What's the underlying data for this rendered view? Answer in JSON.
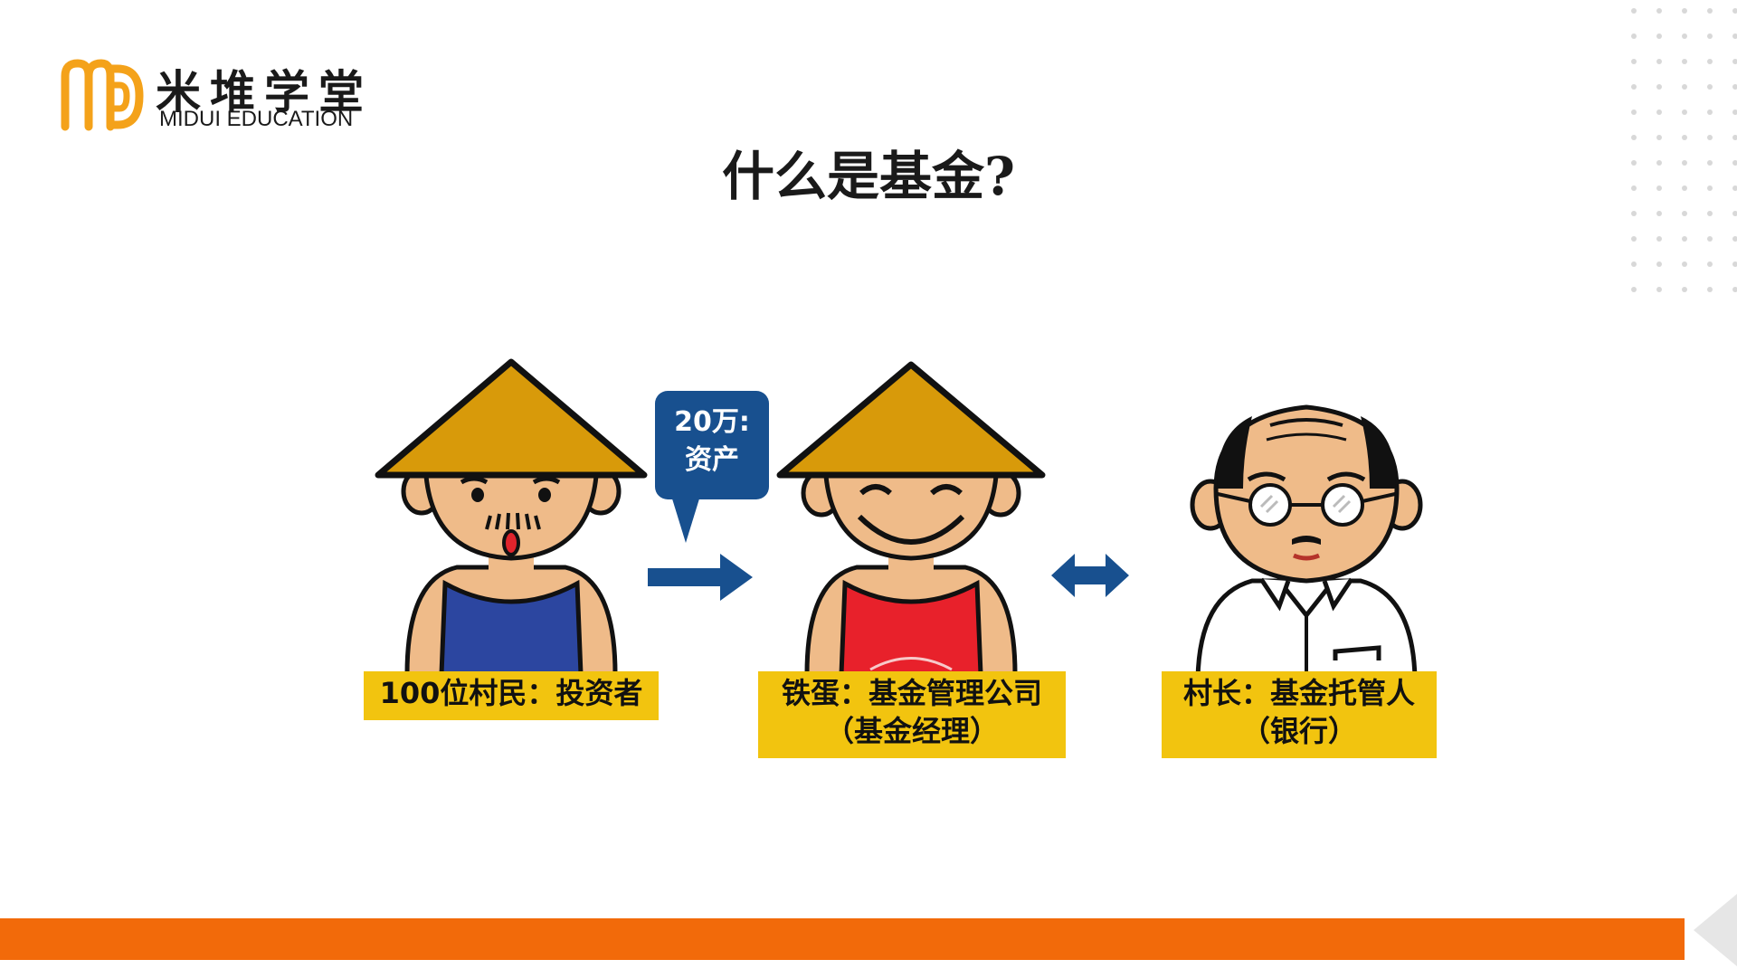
{
  "brand": {
    "name_cn": "米堆学堂",
    "name_en": "MIDUI EDUCATION",
    "accent_color": "#f4a21a"
  },
  "slide": {
    "title": "什么是基金?"
  },
  "bubble": {
    "line1": "20万:",
    "line2": "资产"
  },
  "figures": [
    {
      "id": "villagers",
      "label_line1": "100位村民：投资者",
      "label_line2": ""
    },
    {
      "id": "tiedan",
      "label_line1": "铁蛋：基金管理公司",
      "label_line2": "（基金经理）"
    },
    {
      "id": "village-head",
      "label_line1": "村长：基金托管人",
      "label_line2": "（银行）"
    }
  ],
  "colors": {
    "label_bg": "#f2c40f",
    "bubble_bg": "#18508f",
    "arrow": "#18508f",
    "bottom_bar": "#f26a0a",
    "hat": "#d89a0a",
    "skin": "#efbb89"
  }
}
